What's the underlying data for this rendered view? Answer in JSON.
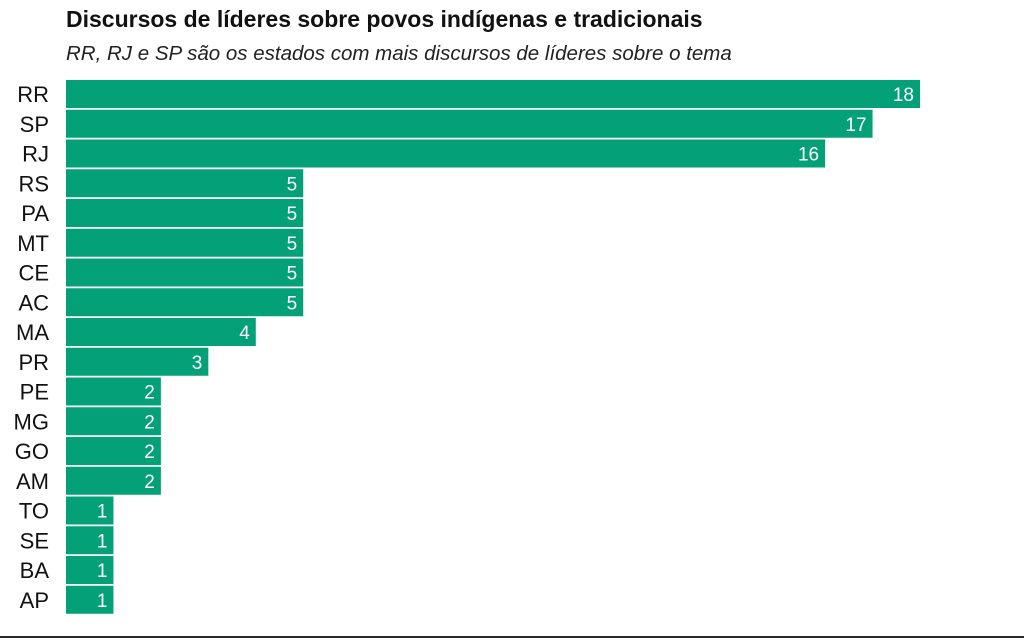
{
  "chart_data": {
    "type": "bar",
    "orientation": "horizontal",
    "title": "Discursos de líderes sobre povos indígenas e tradicionais",
    "subtitle": "RR, RJ e SP são os estados com mais discursos de líderes sobre o tema",
    "categories": [
      "RR",
      "SP",
      "RJ",
      "RS",
      "PA",
      "MT",
      "CE",
      "AC",
      "MA",
      "PR",
      "PE",
      "MG",
      "GO",
      "AM",
      "TO",
      "SE",
      "BA",
      "AP"
    ],
    "values": [
      18,
      17,
      16,
      5,
      5,
      5,
      5,
      5,
      4,
      3,
      2,
      2,
      2,
      2,
      1,
      1,
      1,
      1
    ],
    "xlim": [
      0,
      18
    ],
    "data_labels": "inside-end",
    "grid": false,
    "legend": "none",
    "bar_color": "#04a078"
  }
}
